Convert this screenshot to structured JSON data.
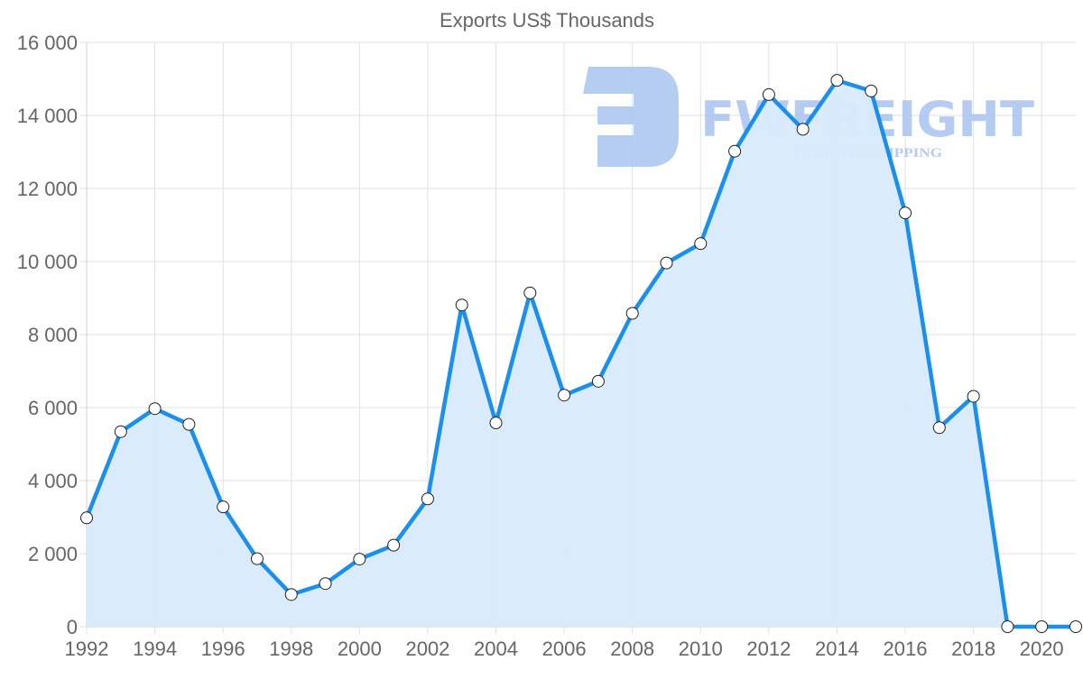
{
  "chart_data": {
    "type": "line",
    "title": "Exports US$ Thousands",
    "xlabel": "",
    "ylabel": "",
    "x": [
      1992,
      1993,
      1994,
      1995,
      1996,
      1997,
      1998,
      1999,
      2000,
      2001,
      2002,
      2003,
      2004,
      2005,
      2006,
      2007,
      2008,
      2009,
      2010,
      2011,
      2012,
      2013,
      2014,
      2015,
      2016,
      2017,
      2018,
      2019,
      2020,
      2021
    ],
    "series": [
      {
        "name": "Exports US$ Thousands",
        "values": [
          2980,
          5340,
          5970,
          5540,
          3280,
          1860,
          880,
          1180,
          1850,
          2230,
          3500,
          8810,
          5580,
          9140,
          6340,
          6720,
          8580,
          9960,
          10490,
          13020,
          14570,
          13620,
          14960,
          14670,
          11330,
          5450,
          6310,
          0,
          0,
          0
        ]
      }
    ],
    "ylim": [
      0,
      16000
    ],
    "yticks": [
      0,
      2000,
      4000,
      6000,
      8000,
      10000,
      12000,
      14000,
      16000
    ],
    "ytick_labels": [
      "0",
      "2 000",
      "4 000",
      "6 000",
      "8 000",
      "10 000",
      "12 000",
      "14 000",
      "16 000"
    ],
    "xticks": [
      1992,
      1994,
      1996,
      1998,
      2000,
      2002,
      2004,
      2006,
      2008,
      2010,
      2012,
      2014,
      2016,
      2018,
      2020
    ],
    "xtick_labels": [
      "1992",
      "1994",
      "1996",
      "1998",
      "2000",
      "2002",
      "2004",
      "2006",
      "2008",
      "2010",
      "2012",
      "2014",
      "2016",
      "2018",
      "2020"
    ],
    "grid": true,
    "legend": "none",
    "fill": true
  },
  "colors": {
    "line": "#1a8ff0",
    "fill": "#d8ebfc",
    "marker_fill": "#ffffff",
    "marker_stroke": "#222222",
    "watermark": "#a9c4f0"
  },
  "watermark": {
    "brand": "FWFREIGHT",
    "tagline": "FREIGHT SHIPPING"
  }
}
